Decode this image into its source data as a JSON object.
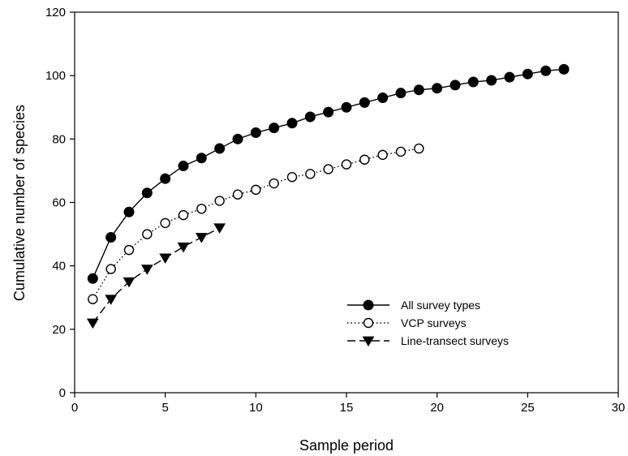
{
  "chart_data": {
    "type": "line",
    "xlabel": "Sample period",
    "ylabel": "Cumulative number of species",
    "xlim": [
      0,
      30
    ],
    "ylim": [
      0,
      120
    ],
    "x_ticks": [
      0,
      5,
      10,
      15,
      20,
      25,
      30
    ],
    "y_ticks": [
      0,
      20,
      40,
      60,
      80,
      100,
      120
    ],
    "grid": false,
    "legend_position": "bottom-right",
    "series": [
      {
        "name": "All survey types",
        "marker": "filled-circle",
        "line_style": "solid",
        "x": [
          1,
          2,
          3,
          4,
          5,
          6,
          7,
          8,
          9,
          10,
          11,
          12,
          13,
          14,
          15,
          16,
          17,
          18,
          19,
          20,
          21,
          22,
          23,
          24,
          25,
          26,
          27
        ],
        "y": [
          36,
          49,
          57,
          63,
          67.5,
          71.5,
          74,
          77,
          80,
          82,
          83.5,
          85,
          87,
          88.5,
          90,
          91.5,
          93,
          94.5,
          95.5,
          96,
          97,
          98,
          98.5,
          99.5,
          100.5,
          101.5,
          102
        ]
      },
      {
        "name": "VCP surveys",
        "marker": "open-circle",
        "line_style": "dotted",
        "x": [
          1,
          2,
          3,
          4,
          5,
          6,
          7,
          8,
          9,
          10,
          11,
          12,
          13,
          14,
          15,
          16,
          17,
          18,
          19
        ],
        "y": [
          29.5,
          39,
          45,
          50,
          53.5,
          56,
          58,
          60.5,
          62.5,
          64,
          66,
          68,
          69,
          70.5,
          72,
          73.5,
          75,
          76,
          77
        ]
      },
      {
        "name": "Line-transect surveys",
        "marker": "filled-triangle-down",
        "line_style": "dashed",
        "x": [
          1,
          2,
          3,
          4,
          5,
          6,
          7,
          8
        ],
        "y": [
          22,
          29.5,
          35,
          39,
          42.5,
          46,
          49,
          52
        ]
      }
    ]
  }
}
